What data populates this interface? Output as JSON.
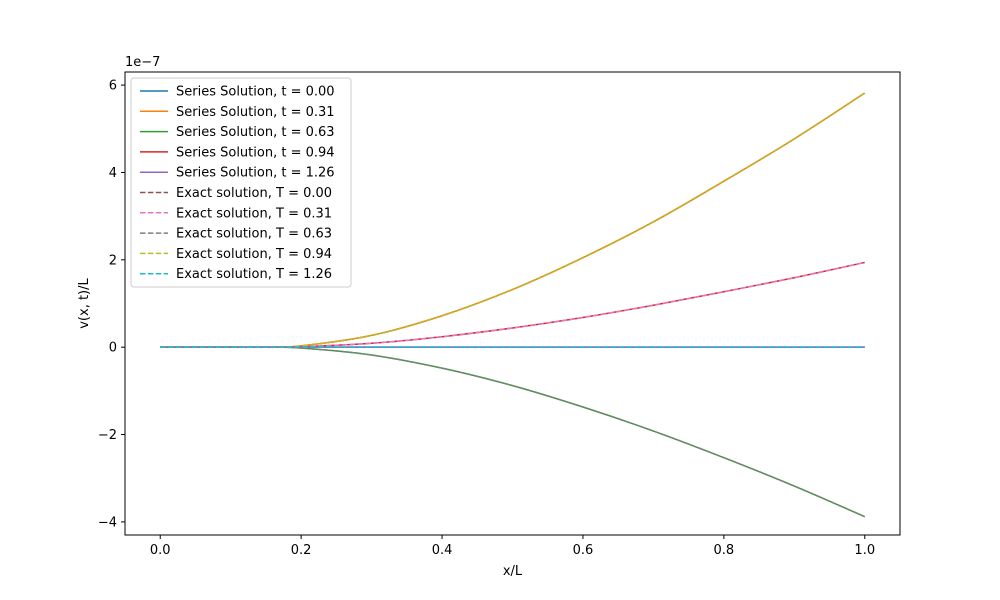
{
  "chart_data": {
    "type": "line",
    "xlabel": "x/L",
    "ylabel": "v(x, t)/L",
    "y_scale_label": "1e−7",
    "xlim": [
      -0.05,
      1.05
    ],
    "ylim": [
      -4.3,
      6.3
    ],
    "xticks": [
      {
        "value": 0.0,
        "label": "0.0"
      },
      {
        "value": 0.2,
        "label": "0.2"
      },
      {
        "value": 0.4,
        "label": "0.4"
      },
      {
        "value": 0.6,
        "label": "0.6"
      },
      {
        "value": 0.8,
        "label": "0.8"
      },
      {
        "value": 1.0,
        "label": "1.0"
      }
    ],
    "yticks": [
      {
        "value": -4,
        "label": "−4"
      },
      {
        "value": -2,
        "label": "−2"
      },
      {
        "value": 0,
        "label": "0"
      },
      {
        "value": 2,
        "label": "2"
      },
      {
        "value": 4,
        "label": "4"
      },
      {
        "value": 6,
        "label": "6"
      }
    ],
    "grid": false,
    "legend_position": "top-left",
    "x": [
      0.0,
      0.1,
      0.15,
      0.2,
      0.3,
      0.4,
      0.5,
      0.6,
      0.7,
      0.8,
      0.9,
      1.0
    ],
    "series": [
      {
        "name": "Series Solution, t = 0.00",
        "color": "#1f77b4",
        "style": "solid",
        "values": [
          0,
          0,
          0,
          0,
          0,
          0,
          0,
          0,
          0,
          0,
          0,
          0
        ]
      },
      {
        "name": "Series Solution, t = 0.31",
        "color": "#ff7f0e",
        "style": "solid",
        "values": [
          0,
          0,
          0,
          0.03,
          0.27,
          0.72,
          1.32,
          2.05,
          2.87,
          3.8,
          4.77,
          5.82
        ]
      },
      {
        "name": "Series Solution, t = 0.63",
        "color": "#2ca02c",
        "style": "solid",
        "values": [
          0,
          0,
          0,
          -0.02,
          -0.18,
          -0.48,
          -0.88,
          -1.37,
          -1.92,
          -2.53,
          -3.18,
          -3.88
        ]
      },
      {
        "name": "Series Solution, t = 0.94",
        "color": "#d62728",
        "style": "solid",
        "values": [
          0,
          0,
          0,
          0.01,
          0.09,
          0.24,
          0.44,
          0.68,
          0.96,
          1.27,
          1.59,
          1.94
        ]
      },
      {
        "name": "Series Solution, t = 1.26",
        "color": "#9467bd",
        "style": "solid",
        "values": [
          0,
          0,
          0,
          0,
          0,
          0,
          0,
          0,
          0,
          0,
          0,
          0
        ]
      },
      {
        "name": "Exact solution, T = 0.00",
        "color": "#8c564b",
        "style": "dashed",
        "values": [
          0,
          0,
          0,
          0.03,
          0.27,
          0.72,
          1.32,
          2.05,
          2.87,
          3.8,
          4.77,
          5.82
        ]
      },
      {
        "name": "Exact solution, T = 0.31",
        "color": "#e377c2",
        "style": "dashed",
        "values": [
          0,
          0,
          0,
          0.01,
          0.09,
          0.24,
          0.44,
          0.68,
          0.96,
          1.27,
          1.59,
          1.94
        ]
      },
      {
        "name": "Exact solution, T = 0.63",
        "color": "#7f7f7f",
        "style": "dashed",
        "values": [
          0,
          0,
          0,
          -0.02,
          -0.18,
          -0.48,
          -0.88,
          -1.37,
          -1.92,
          -2.53,
          -3.18,
          -3.88
        ]
      },
      {
        "name": "Exact solution, T = 0.94",
        "color": "#bcbd22",
        "style": "dashed",
        "values": [
          0,
          0,
          0,
          0.03,
          0.27,
          0.72,
          1.32,
          2.05,
          2.87,
          3.8,
          4.77,
          5.82
        ]
      },
      {
        "name": "Exact solution, T = 1.26",
        "color": "#17becf",
        "style": "dashed",
        "values": [
          0,
          0,
          0,
          0,
          0,
          0,
          0,
          0,
          0,
          0,
          0,
          0
        ]
      }
    ]
  }
}
